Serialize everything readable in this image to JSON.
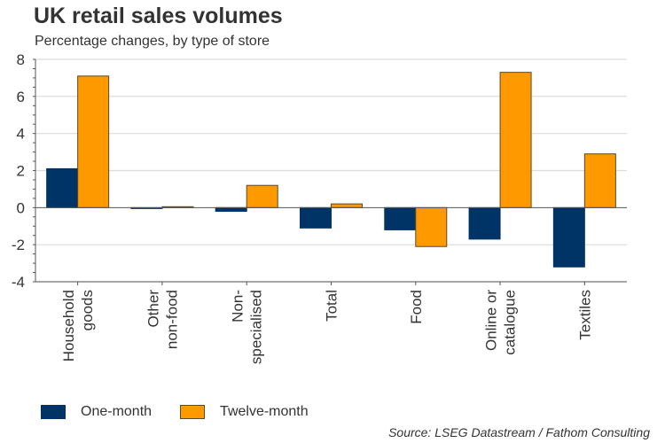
{
  "chart_data": {
    "type": "bar",
    "title": "UK retail sales volumes",
    "subtitle": "Percentage changes, by type of store",
    "xlabel": "",
    "ylabel": "",
    "ylim": [
      -4,
      8
    ],
    "yticks": [
      8,
      6,
      4,
      2,
      0,
      -2,
      -4
    ],
    "grid": true,
    "categories": [
      "Household goods",
      "Other non-food",
      "Non-specialised",
      "Total",
      "Food",
      "Online or catalogue",
      "Textiles"
    ],
    "category_lines": [
      [
        "Household",
        "goods"
      ],
      [
        "Other",
        "non-food"
      ],
      [
        "Non-",
        "specialised"
      ],
      [
        "Total"
      ],
      [
        "Food"
      ],
      [
        "Online or",
        "catalogue"
      ],
      [
        "Textiles"
      ]
    ],
    "series": [
      {
        "name": "One-month",
        "color": "#003366",
        "values": [
          2.1,
          -0.05,
          -0.2,
          -1.1,
          -1.2,
          -1.7,
          -3.2
        ]
      },
      {
        "name": "Twelve-month",
        "color": "#FF9900",
        "values": [
          7.1,
          0.05,
          1.2,
          0.2,
          -2.1,
          7.3,
          2.9
        ]
      }
    ],
    "legend_position": "bottom-left",
    "source": "Source: LSEG Datastream / Fathom Consulting"
  }
}
